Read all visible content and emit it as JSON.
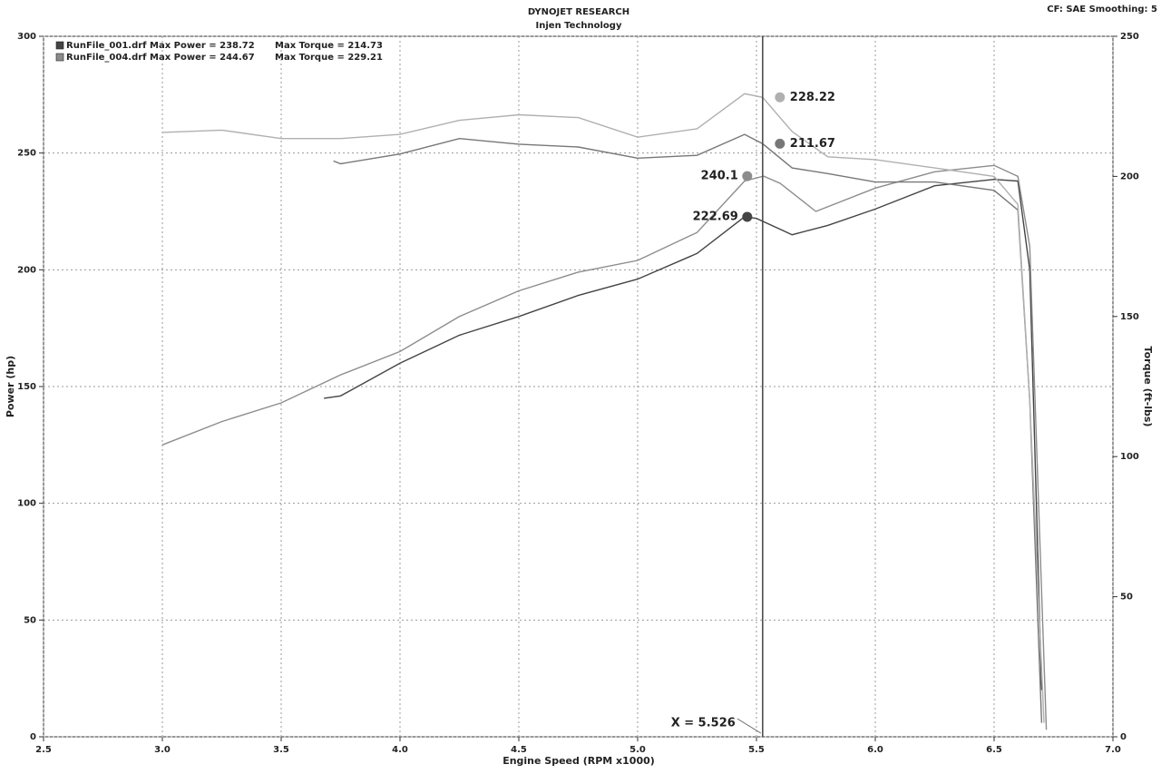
{
  "chart_data": {
    "type": "line",
    "title": "DYNOJET RESEARCH",
    "subtitle": "Injen Technology",
    "corner_note": "CF: SAE  Smoothing: 5",
    "x_label": "Engine Speed (RPM x1000)",
    "y_label": "Power (hp)",
    "y2_label": "Torque (ft-lbs)",
    "xlim": [
      2.5,
      7.0
    ],
    "xticks": [
      2.5,
      {
        "value": 3,
        "label": "3.0"
      },
      3.5,
      {
        "value": 4,
        "label": "4.0"
      },
      4.5,
      {
        "value": 5,
        "label": "5.0"
      },
      5.5,
      {
        "value": 6,
        "label": "6.0"
      },
      6.5,
      {
        "value": 7,
        "label": "7.0"
      }
    ],
    "ylim": [
      0,
      300
    ],
    "yticks": [
      0,
      50,
      100,
      150,
      200,
      250,
      300
    ],
    "y2lim": [
      0,
      250
    ],
    "y2ticks": [
      0,
      50,
      100,
      150,
      200,
      250
    ],
    "grid": true,
    "legend": [
      {
        "color": "#444444",
        "text": "RunFile_001.drf Max Power = 238.72",
        "text2": "Max Torque = 214.73"
      },
      {
        "color": "#8c8c8c",
        "text": "RunFile_004.drf Max Power = 244.67",
        "text2": "Max Torque = 229.21"
      }
    ],
    "cursor": {
      "value": 5.526,
      "label": "X = 5.526"
    },
    "series": [
      {
        "color": "#444444",
        "axis": "y",
        "cursor_value": 222.69,
        "x": [
          3.68,
          3.75,
          4.0,
          4.25,
          4.5,
          4.75,
          5.0,
          5.25,
          5.45,
          5.5,
          5.65,
          5.8,
          6.0,
          6.25,
          6.5,
          6.6,
          6.65,
          6.7
        ],
        "values": [
          145,
          146,
          160,
          172,
          180,
          189,
          196,
          207,
          222.7,
          222,
          215,
          219,
          226,
          236,
          238.7,
          238,
          200,
          20
        ]
      },
      {
        "color": "#8c8c8c",
        "axis": "y",
        "cursor_value": 240.1,
        "x": [
          3.0,
          3.25,
          3.5,
          3.75,
          4.0,
          4.25,
          4.5,
          4.75,
          5.0,
          5.25,
          5.45,
          5.53,
          5.6,
          5.75,
          6.0,
          6.25,
          6.5,
          6.6,
          6.65,
          6.72
        ],
        "values": [
          125,
          135,
          143,
          155,
          165,
          180,
          191,
          199,
          204,
          216,
          238,
          240.1,
          237,
          225,
          235,
          242,
          244.7,
          240,
          210,
          3
        ]
      },
      {
        "color": "#777777",
        "axis": "y2",
        "cursor_value": 211.67,
        "x": [
          3.72,
          3.75,
          4.0,
          4.25,
          4.5,
          4.75,
          5.0,
          5.25,
          5.45,
          5.526,
          5.65,
          5.8,
          6.0,
          6.25,
          6.5,
          6.6,
          6.65,
          6.7
        ],
        "values": [
          205.5,
          204.5,
          208,
          213.5,
          211.5,
          210.5,
          206.5,
          207.5,
          215,
          211.67,
          203,
          201,
          198,
          198,
          195,
          188,
          120,
          5
        ]
      },
      {
        "color": "#b0b0b0",
        "axis": "y2",
        "cursor_value": 228.22,
        "x": [
          3.0,
          3.25,
          3.5,
          3.75,
          4.0,
          4.25,
          4.5,
          4.75,
          5.0,
          5.25,
          5.45,
          5.526,
          5.65,
          5.8,
          6.0,
          6.25,
          6.5,
          6.6,
          6.65,
          6.71
        ],
        "values": [
          215.7,
          216.5,
          213.5,
          213.5,
          215,
          220,
          222,
          221,
          214,
          217,
          229.5,
          228.22,
          216,
          207,
          206,
          203,
          200,
          190,
          120,
          5
        ]
      }
    ]
  }
}
